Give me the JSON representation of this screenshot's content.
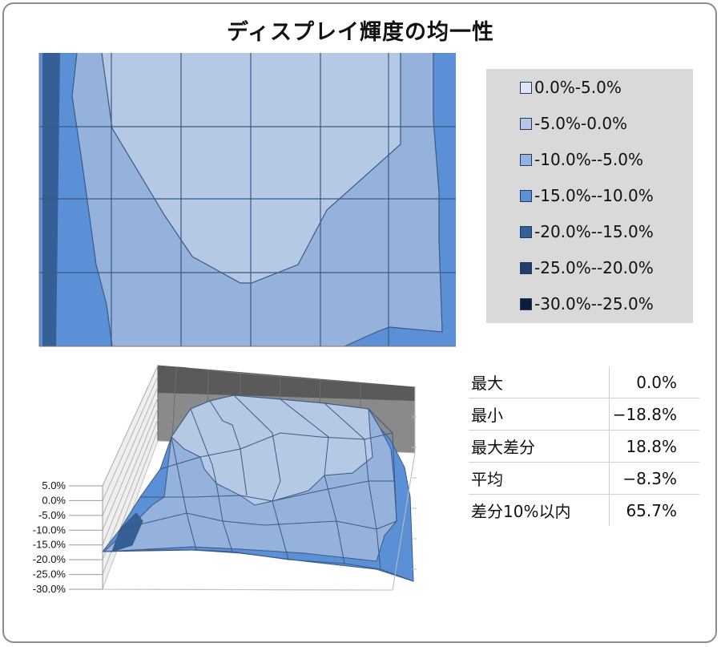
{
  "title": "ディスプレイ輝度の均一性",
  "colors": {
    "band_0_5": "#dde6f4",
    "band_m5_0": "#b6c9e4",
    "band_m10_m5": "#95b2dc",
    "band_m15_m10": "#5b8fd6",
    "band_m20_m15": "#355f95",
    "band_m25_m20": "#203f69",
    "band_m30_m25": "#0d1e38",
    "grid_line": "#3b5a85"
  },
  "chart_data": [
    {
      "type": "heatmap",
      "title": "ディスプレイ輝度の均一性",
      "legend": {
        "placement": "right",
        "entries": [
          {
            "label": "0.0%-5.0%",
            "color": "#dde6f4"
          },
          {
            "label": "-5.0%-0.0%",
            "color": "#b6c9e4"
          },
          {
            "label": "-10.0%--5.0%",
            "color": "#95b2dc"
          },
          {
            "label": "-15.0%--10.0%",
            "color": "#5b8fd6"
          },
          {
            "label": "-20.0%--15.0%",
            "color": "#355f95"
          },
          {
            "label": "-25.0%--20.0%",
            "color": "#203f69"
          },
          {
            "label": "-30.0%--25.0%",
            "color": "#0d1e38"
          }
        ]
      },
      "grid": true
    },
    {
      "type": "area",
      "z_ticks": [
        "5.0%",
        "0.0%",
        "-5.0%",
        "-10.0%",
        "-15.0%",
        "-20.0%",
        "-25.0%",
        "-30.0%"
      ],
      "zlim": [
        -30,
        5
      ]
    }
  ],
  "stats": [
    {
      "label": "最大",
      "value": "0.0%"
    },
    {
      "label": "最小",
      "value": "−18.8%"
    },
    {
      "label": "最大差分",
      "value": "18.8%"
    },
    {
      "label": "平均",
      "value": "−8.3%"
    },
    {
      "label": "差分10%以内",
      "value": "65.7%"
    }
  ]
}
